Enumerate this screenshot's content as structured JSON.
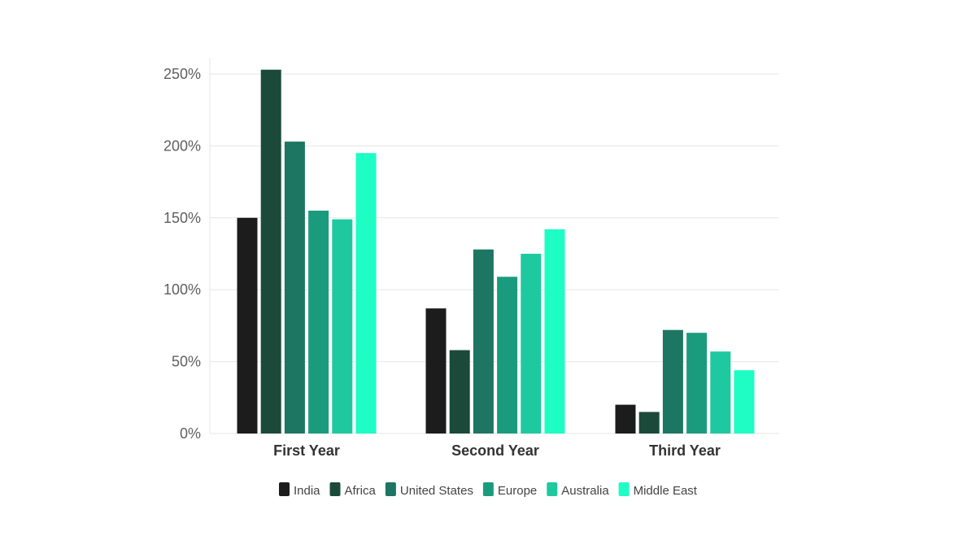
{
  "chart_data": {
    "type": "bar",
    "categories": [
      "First Year",
      "Second Year",
      "Third Year"
    ],
    "series": [
      {
        "name": "India",
        "color": "#1c1c1c",
        "values": [
          150,
          87,
          20
        ]
      },
      {
        "name": "Africa",
        "color": "#1b4a3a",
        "values": [
          253,
          58,
          15
        ]
      },
      {
        "name": "United States",
        "color": "#1d7661",
        "values": [
          203,
          128,
          72
        ]
      },
      {
        "name": "Europe",
        "color": "#1a9b7e",
        "values": [
          155,
          109,
          70
        ]
      },
      {
        "name": "Australia",
        "color": "#1fc9a0",
        "values": [
          149,
          125,
          57
        ]
      },
      {
        "name": "Middle East",
        "color": "#1dfdc4",
        "values": [
          195,
          142,
          44
        ]
      }
    ],
    "yticks": [
      0,
      50,
      100,
      150,
      200,
      250
    ],
    "ytick_labels": [
      "0%",
      "50%",
      "100%",
      "150%",
      "200%",
      "250%"
    ],
    "ylim": [
      0,
      250
    ],
    "title": "",
    "xlabel": "",
    "ylabel": "",
    "grid": true,
    "legend_position": "bottom-center"
  }
}
